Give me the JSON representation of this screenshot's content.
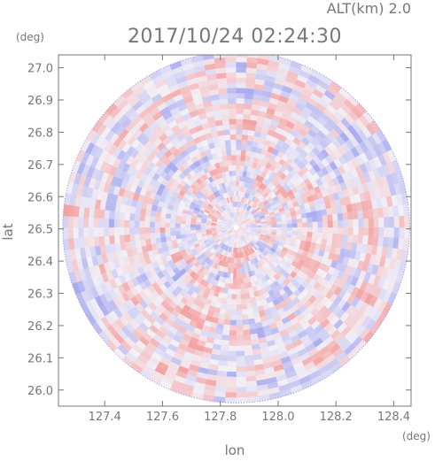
{
  "header": {
    "altitude_label": "ALT(km)  2.0",
    "timestamp": "2017/10/24 02:24:30"
  },
  "chart_data": {
    "type": "heatmap",
    "title": "2017/10/24 02:24:30",
    "xlabel": "lon",
    "ylabel": "lat",
    "x_unit": "(deg)",
    "y_unit": "(deg)",
    "xlim": [
      127.24,
      128.46
    ],
    "ylim": [
      25.95,
      27.04
    ],
    "x_ticks": [
      127.4,
      127.6,
      127.8,
      128.0,
      128.2,
      128.4
    ],
    "x_tick_labels": [
      "127.4",
      "127.6",
      "127.8",
      "128.0",
      "128.2",
      "128.4"
    ],
    "y_ticks": [
      26.0,
      26.1,
      26.2,
      26.3,
      26.4,
      26.5,
      26.6,
      26.7,
      26.8,
      26.9,
      27.0
    ],
    "y_tick_labels": [
      "26.0",
      "26.1",
      "26.2",
      "26.3",
      "26.4",
      "26.5",
      "26.6",
      "26.7",
      "26.8",
      "26.9",
      "27.0"
    ],
    "grid": false,
    "legend": "none",
    "radar_center": {
      "lon": 127.855,
      "lat": 26.505
    },
    "radar_radius_deg": {
      "lon": 0.6,
      "lat": 0.545
    },
    "colors": {
      "positive": "#f4a3a3",
      "negative": "#a9acf0",
      "neutral": "#f3f0f6",
      "axis": "#777777"
    }
  }
}
